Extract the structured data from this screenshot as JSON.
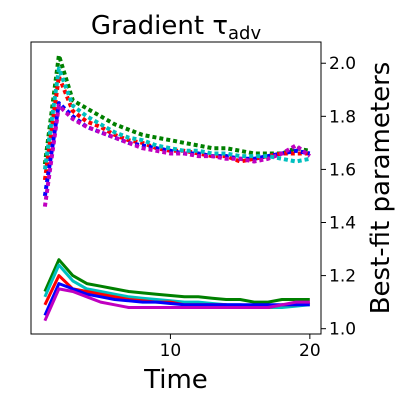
{
  "chart_data": {
    "type": "line",
    "title": "Gradient τ",
    "title_subscript": "adv",
    "xlabel": "Time",
    "ylabel": "Best-fit parameters",
    "x_ticks": [
      10,
      20
    ],
    "y_ticks": [
      1.0,
      1.2,
      1.4,
      1.6,
      1.8,
      2.0
    ],
    "y_tick_labels": [
      "1.0",
      "1.2",
      "1.4",
      "1.6",
      "1.8",
      "2.0"
    ],
    "xlim": [
      0.0,
      20.8
    ],
    "ylim": [
      0.98,
      2.08
    ],
    "y_axis_side": "right",
    "grid": false,
    "x": [
      1,
      2,
      3,
      4,
      5,
      6,
      7,
      8,
      9,
      10,
      11,
      12,
      13,
      14,
      15,
      16,
      17,
      18,
      19,
      20
    ],
    "series": [
      {
        "style": "dotted",
        "color": "#008000",
        "values": [
          1.62,
          2.03,
          1.86,
          1.83,
          1.8,
          1.77,
          1.75,
          1.73,
          1.72,
          1.71,
          1.7,
          1.69,
          1.68,
          1.68,
          1.67,
          1.66,
          1.66,
          1.66,
          1.68,
          1.67
        ]
      },
      {
        "style": "dotted",
        "color": "#ff0000",
        "values": [
          1.56,
          1.95,
          1.82,
          1.78,
          1.76,
          1.73,
          1.71,
          1.7,
          1.68,
          1.67,
          1.67,
          1.66,
          1.65,
          1.65,
          1.63,
          1.64,
          1.65,
          1.66,
          1.66,
          1.66
        ]
      },
      {
        "style": "dotted",
        "color": "#0000ff",
        "values": [
          1.5,
          1.85,
          1.8,
          1.76,
          1.74,
          1.72,
          1.7,
          1.69,
          1.68,
          1.67,
          1.66,
          1.66,
          1.65,
          1.65,
          1.64,
          1.64,
          1.65,
          1.66,
          1.67,
          1.66
        ]
      },
      {
        "style": "dotted",
        "color": "#c000c0",
        "values": [
          1.46,
          1.84,
          1.79,
          1.76,
          1.74,
          1.72,
          1.7,
          1.68,
          1.67,
          1.66,
          1.66,
          1.65,
          1.65,
          1.64,
          1.64,
          1.63,
          1.64,
          1.66,
          1.69,
          1.65
        ]
      },
      {
        "style": "dotted",
        "color": "#00bfbf",
        "values": [
          1.6,
          1.98,
          1.84,
          1.8,
          1.77,
          1.74,
          1.72,
          1.71,
          1.69,
          1.68,
          1.67,
          1.67,
          1.66,
          1.66,
          1.65,
          1.65,
          1.65,
          1.64,
          1.63,
          1.64
        ]
      },
      {
        "style": "solid",
        "color": "#008000",
        "values": [
          1.14,
          1.26,
          1.2,
          1.17,
          1.16,
          1.15,
          1.14,
          1.135,
          1.13,
          1.125,
          1.12,
          1.12,
          1.115,
          1.11,
          1.11,
          1.1,
          1.1,
          1.11,
          1.11,
          1.11
        ]
      },
      {
        "style": "solid",
        "color": "#00bfbf",
        "values": [
          1.12,
          1.24,
          1.18,
          1.15,
          1.14,
          1.13,
          1.12,
          1.115,
          1.11,
          1.105,
          1.1,
          1.1,
          1.095,
          1.09,
          1.09,
          1.085,
          1.08,
          1.08,
          1.085,
          1.09
        ]
      },
      {
        "style": "solid",
        "color": "#ff0000",
        "values": [
          1.09,
          1.2,
          1.15,
          1.14,
          1.13,
          1.12,
          1.11,
          1.105,
          1.1,
          1.1,
          1.09,
          1.09,
          1.09,
          1.09,
          1.08,
          1.08,
          1.08,
          1.09,
          1.09,
          1.1
        ]
      },
      {
        "style": "solid",
        "color": "#0000ff",
        "values": [
          1.05,
          1.17,
          1.15,
          1.13,
          1.12,
          1.11,
          1.105,
          1.1,
          1.1,
          1.095,
          1.09,
          1.09,
          1.09,
          1.09,
          1.09,
          1.09,
          1.09,
          1.09,
          1.09,
          1.09
        ]
      },
      {
        "style": "solid",
        "color": "#c000c0",
        "values": [
          1.03,
          1.15,
          1.14,
          1.12,
          1.1,
          1.09,
          1.08,
          1.08,
          1.08,
          1.08,
          1.08,
          1.08,
          1.08,
          1.08,
          1.08,
          1.08,
          1.08,
          1.09,
          1.1,
          1.1
        ]
      }
    ]
  }
}
